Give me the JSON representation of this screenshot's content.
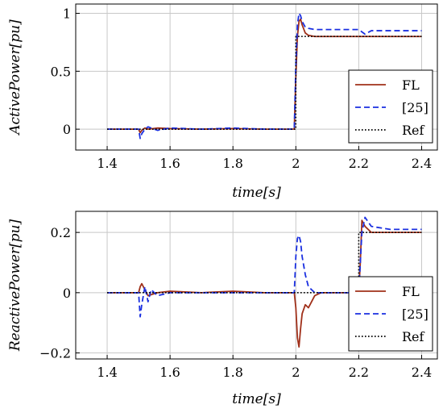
{
  "chart_data": [
    {
      "type": "line",
      "title": "",
      "xlabel": "time[s]",
      "ylabel": "ActivePower[pu]",
      "xlim": [
        1.3,
        2.45
      ],
      "ylim": [
        -0.18,
        1.08
      ],
      "xticks": [
        1.4,
        1.6,
        1.8,
        2.0,
        2.2,
        2.4
      ],
      "xtick_labels": [
        "1.4",
        "1.6",
        "1.8",
        "2",
        "2.2",
        "2.4"
      ],
      "yticks": [
        0,
        0.5,
        1
      ],
      "ytick_labels": [
        "0",
        "0.5",
        "1"
      ],
      "grid": true,
      "legend_position": "bottom-right",
      "series": [
        {
          "name": "FL",
          "color": "#a0301a",
          "style": "solid",
          "x": [
            1.4,
            1.5,
            1.505,
            1.51,
            1.52,
            1.53,
            1.56,
            1.6,
            1.7,
            1.8,
            1.9,
            1.995,
            2.0,
            2.005,
            2.01,
            2.015,
            2.02,
            2.03,
            2.04,
            2.06,
            2.1,
            2.2,
            2.3,
            2.4
          ],
          "y": [
            0,
            0,
            -0.03,
            -0.01,
            0.01,
            0.0,
            0.01,
            0.005,
            0.0,
            0.005,
            0.0,
            0.0,
            0.45,
            0.8,
            0.93,
            0.95,
            0.9,
            0.83,
            0.81,
            0.8,
            0.8,
            0.8,
            0.8,
            0.8
          ]
        },
        {
          "name": "[25]",
          "color": "#1a2fe0",
          "style": "dashed",
          "x": [
            1.4,
            1.5,
            1.505,
            1.51,
            1.52,
            1.53,
            1.56,
            1.6,
            1.7,
            1.8,
            1.9,
            1.995,
            2.0,
            2.005,
            2.01,
            2.015,
            2.02,
            2.03,
            2.04,
            2.06,
            2.08,
            2.1,
            2.15,
            2.2,
            2.21,
            2.22,
            2.24,
            2.3,
            2.4
          ],
          "y": [
            0,
            0,
            -0.08,
            -0.04,
            0.0,
            0.02,
            -0.01,
            0.01,
            0.0,
            0.01,
            0.0,
            0.0,
            0.55,
            0.9,
            1.0,
            0.98,
            0.93,
            0.88,
            0.87,
            0.86,
            0.86,
            0.86,
            0.86,
            0.86,
            0.84,
            0.82,
            0.85,
            0.85,
            0.85
          ]
        },
        {
          "name": "Ref",
          "color": "#000000",
          "style": "dotted",
          "x": [
            1.4,
            2.0,
            2.0,
            2.4
          ],
          "y": [
            0,
            0,
            0.8,
            0.8
          ]
        }
      ]
    },
    {
      "type": "line",
      "title": "",
      "xlabel": "time[s]",
      "ylabel": "ReactivePower[pu]",
      "xlim": [
        1.3,
        2.45
      ],
      "ylim": [
        -0.22,
        0.27
      ],
      "xticks": [
        1.4,
        1.6,
        1.8,
        2.0,
        2.2,
        2.4
      ],
      "xtick_labels": [
        "1.4",
        "1.6",
        "1.8",
        "2",
        "2.2",
        "2.4"
      ],
      "yticks": [
        -0.2,
        0,
        0.2
      ],
      "ytick_labels": [
        "−0.2",
        "0",
        "0.2"
      ],
      "grid": true,
      "legend_position": "bottom-right",
      "series": [
        {
          "name": "FL",
          "color": "#a0301a",
          "style": "solid",
          "x": [
            1.4,
            1.5,
            1.505,
            1.51,
            1.52,
            1.53,
            1.56,
            1.6,
            1.7,
            1.8,
            1.9,
            1.995,
            2.0,
            2.005,
            2.01,
            2.015,
            2.02,
            2.03,
            2.04,
            2.05,
            2.06,
            2.08,
            2.1,
            2.2,
            2.205,
            2.21,
            2.22,
            2.24,
            2.3,
            2.4
          ],
          "y": [
            0,
            0,
            0.02,
            0.03,
            0.01,
            -0.01,
            0.0,
            0.005,
            0.0,
            0.005,
            0.0,
            0.0,
            -0.05,
            -0.15,
            -0.18,
            -0.12,
            -0.07,
            -0.04,
            -0.05,
            -0.03,
            -0.01,
            0.0,
            0.0,
            0.0,
            0.1,
            0.24,
            0.22,
            0.2,
            0.2,
            0.2
          ]
        },
        {
          "name": "[25]",
          "color": "#1a2fe0",
          "style": "dashed",
          "x": [
            1.4,
            1.5,
            1.505,
            1.51,
            1.52,
            1.53,
            1.54,
            1.56,
            1.6,
            1.7,
            1.8,
            1.9,
            1.995,
            2.0,
            2.005,
            2.01,
            2.015,
            2.02,
            2.03,
            2.04,
            2.05,
            2.06,
            2.08,
            2.1,
            2.2,
            2.205,
            2.21,
            2.22,
            2.24,
            2.3,
            2.4
          ],
          "y": [
            0,
            0,
            -0.08,
            -0.04,
            0.02,
            -0.03,
            0.01,
            -0.01,
            0.0,
            0.0,
            0.0,
            0.0,
            0.0,
            0.12,
            0.18,
            0.19,
            0.17,
            0.12,
            0.06,
            0.02,
            0.01,
            0.0,
            0.0,
            0.0,
            0.0,
            0.1,
            0.2,
            0.25,
            0.22,
            0.21,
            0.21
          ]
        },
        {
          "name": "Ref",
          "color": "#000000",
          "style": "dotted",
          "x": [
            1.4,
            2.2,
            2.2,
            2.4
          ],
          "y": [
            0,
            0,
            0.2,
            0.2
          ]
        }
      ]
    }
  ]
}
